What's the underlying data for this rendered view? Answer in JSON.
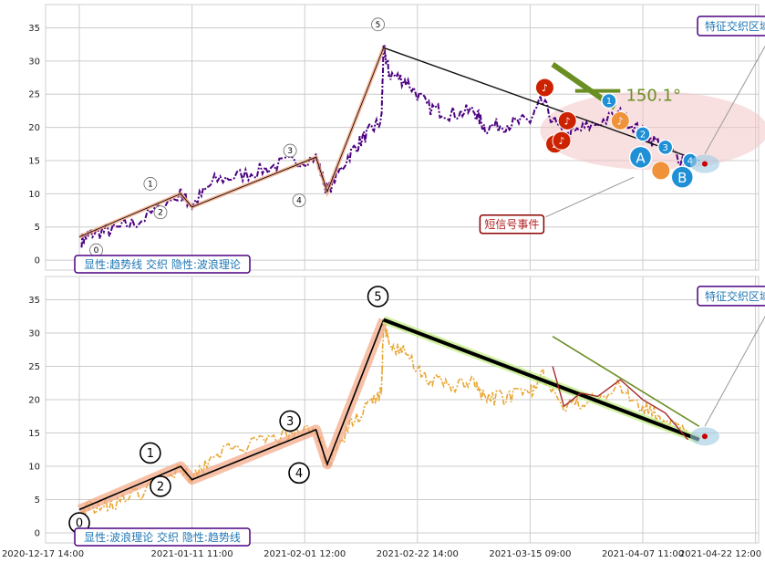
{
  "chart_data": [
    {
      "type": "line",
      "ylim": [
        -1.5,
        38.5
      ],
      "yticks": [
        0,
        5,
        10,
        15,
        20,
        25,
        30,
        35
      ],
      "grid": true,
      "caption": "显性:趋势线 交织 隐性:波浪理论",
      "zone_label": "特征交织区域",
      "event_label": "短信号事件",
      "angle_label": "150.1°",
      "wave_labels": [
        "0",
        "1",
        "2",
        "3",
        "4",
        "5"
      ],
      "wave_points": [
        [
          0.0,
          3.5
        ],
        [
          0.9,
          10.0
        ],
        [
          1.0,
          8.0
        ],
        [
          2.1,
          15.5
        ],
        [
          2.2,
          10.3
        ],
        [
          2.7,
          32.0
        ]
      ],
      "trend_line": [
        [
          2.7,
          32.0
        ],
        [
          5.5,
          15.0
        ]
      ],
      "signal_markers": [
        {
          "x": 4.13,
          "y": 26.0,
          "label": "♪"
        },
        {
          "x": 4.22,
          "y": 17.5,
          "label": "♪"
        },
        {
          "x": 4.28,
          "y": 18.0,
          "label": "♪"
        },
        {
          "x": 4.33,
          "y": 21.0,
          "label": "♪"
        },
        {
          "x": 4.8,
          "y": 21.0,
          "label": "♪"
        },
        {
          "x": 5.16,
          "y": 13.5,
          "label": ""
        }
      ],
      "sub_waves": [
        {
          "x": 4.7,
          "y": 24.0,
          "label": "1"
        },
        {
          "x": 5.0,
          "y": 19.0,
          "label": "2"
        },
        {
          "x": 5.2,
          "y": 17.0,
          "label": "3"
        },
        {
          "x": 5.42,
          "y": 15.0,
          "label": "4"
        },
        {
          "x": 4.98,
          "y": 15.5,
          "label": "A"
        },
        {
          "x": 5.35,
          "y": 12.5,
          "label": "B"
        }
      ]
    },
    {
      "type": "line",
      "ylim": [
        -1.5,
        38.5
      ],
      "yticks": [
        0,
        5,
        10,
        15,
        20,
        25,
        30,
        35
      ],
      "grid": true,
      "caption": "显性:波浪理论 交织 隐性:趋势线",
      "zone_label": "特征交织区域",
      "wave_labels": [
        "0",
        "1",
        "2",
        "3",
        "4",
        "5"
      ],
      "wave_points": [
        [
          0.0,
          3.5
        ],
        [
          0.9,
          10.0
        ],
        [
          1.0,
          8.0
        ],
        [
          2.1,
          15.5
        ],
        [
          2.2,
          10.3
        ],
        [
          2.7,
          32.0
        ]
      ],
      "trend_line": [
        [
          2.7,
          32.0
        ],
        [
          5.5,
          14.0
        ]
      ]
    }
  ],
  "x_axis": {
    "ticks": [
      "2020-12-17 14:00",
      "2021-01-11 11:00",
      "2021-02-01 12:00",
      "2021-02-22 14:00",
      "2021-03-15 09:00",
      "2021-04-07 11:00",
      "2021-04-22 12:00"
    ],
    "tick_positions": [
      0,
      1,
      2,
      3,
      4,
      5,
      6
    ]
  },
  "colors": {
    "series1": "#4b0082",
    "series2": "#e8a735",
    "wave_line1": "#f4a582",
    "wave_line2": "#f4a582",
    "trend1": "#111111",
    "trend2": "#000000",
    "zone": "#f3c7c9",
    "label_text": "#1f77b4",
    "label_border": "#4b0082",
    "signal_red": "#cc2200",
    "signal_orange": "#f0923a",
    "sub_blue": "#1f8fd6",
    "olive": "#6b8e23"
  }
}
